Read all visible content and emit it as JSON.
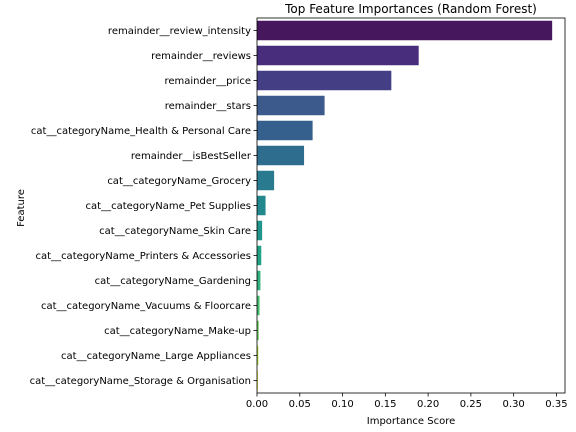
{
  "chart_data": {
    "type": "bar",
    "orientation": "horizontal",
    "title": "Top Feature Importances (Random Forest)",
    "xlabel": "Importance Score",
    "ylabel": "Feature",
    "xlim": [
      0,
      0.36
    ],
    "xticks": [
      "0.00",
      "0.05",
      "0.10",
      "0.15",
      "0.20",
      "0.25",
      "0.30",
      "0.35"
    ],
    "categories": [
      "remainder__review_intensity",
      "remainder__reviews",
      "remainder__price",
      "remainder__stars",
      "cat__categoryName_Health & Personal Care",
      "remainder__isBestSeller",
      "cat__categoryName_Grocery",
      "cat__categoryName_Pet Supplies",
      "cat__categoryName_Skin Care",
      "cat__categoryName_Printers & Accessories",
      "cat__categoryName_Gardening",
      "cat__categoryName_Vacuums & Floorcare",
      "cat__categoryName_Make-up",
      "cat__categoryName_Large Appliances",
      "cat__categoryName_Storage & Organisation"
    ],
    "values": [
      0.345,
      0.189,
      0.157,
      0.079,
      0.065,
      0.055,
      0.02,
      0.01,
      0.006,
      0.005,
      0.004,
      0.003,
      0.002,
      0.0015,
      0.001
    ],
    "colors": [
      "#46175d",
      "#472d7b",
      "#443e85",
      "#3d5a8c",
      "#355f8d",
      "#2e6d8e",
      "#297a8e",
      "#23888e",
      "#1f958b",
      "#22a285",
      "#2fb07c",
      "#44bf70",
      "#66c957",
      "#aadc32",
      "#dde318"
    ],
    "grid": false,
    "legend": "none"
  }
}
